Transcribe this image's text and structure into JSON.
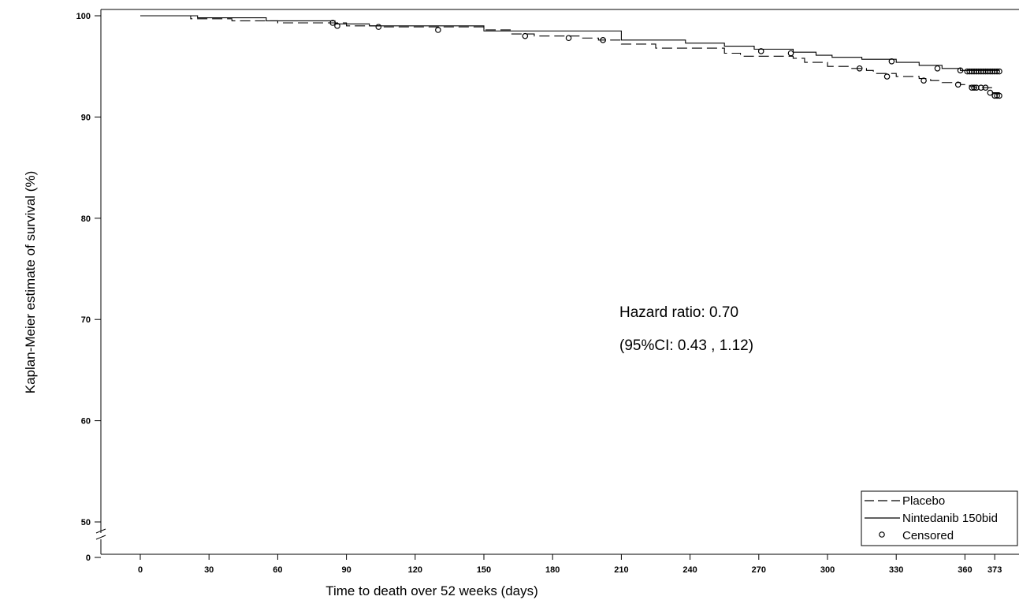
{
  "chart_data": {
    "type": "line",
    "subtype": "kaplan-meier step",
    "xlabel": "Time to death over 52 weeks (days)",
    "ylabel": "Kaplan-Meier estimate of survival (%)",
    "xticks": [
      "0",
      "30",
      "60",
      "90",
      "120",
      "150",
      "180",
      "210",
      "240",
      "270",
      "300",
      "330",
      "360",
      "373"
    ],
    "yticks": [
      "0",
      "50",
      "60",
      "70",
      "80",
      "90",
      "100"
    ],
    "xlim": [
      -17,
      388
    ],
    "ylim": [
      0,
      100
    ],
    "axis_break": "between 0 and 50 on y axis",
    "annotations": [
      "Hazard ratio: 0.70",
      "(95%CI: 0.43 , 1.12)"
    ],
    "legend": {
      "position": "bottom-right",
      "entries": [
        {
          "label": "Placebo",
          "style": "dashed"
        },
        {
          "label": "Nintedanib 150bid",
          "style": "solid"
        },
        {
          "label": "Censored",
          "style": "circle"
        }
      ]
    },
    "series": [
      {
        "name": "Placebo",
        "style": "dashed",
        "x": [
          0,
          22,
          40,
          60,
          90,
          105,
          150,
          162,
          172,
          192,
          200,
          210,
          225,
          255,
          262,
          285,
          290,
          300,
          310,
          317,
          320,
          330,
          340,
          345,
          350,
          358,
          362,
          364,
          372,
          375
        ],
        "y": [
          100,
          99.7,
          99.5,
          99.3,
          99.0,
          98.9,
          98.6,
          98.2,
          98.0,
          97.8,
          97.6,
          97.2,
          96.8,
          96.3,
          96.0,
          95.8,
          95.4,
          95.0,
          94.8,
          94.6,
          94.3,
          94.0,
          93.8,
          93.6,
          93.4,
          93.2,
          93.0,
          92.9,
          92.4,
          92.2
        ],
        "censored": [
          [
            86,
            99.0
          ],
          [
            314,
            94.8
          ],
          [
            326,
            94.0
          ],
          [
            342,
            93.6
          ],
          [
            357,
            93.2
          ],
          [
            363,
            92.9
          ],
          [
            364,
            92.9
          ],
          [
            365,
            92.9
          ],
          [
            367,
            92.9
          ],
          [
            369,
            92.9
          ],
          [
            371,
            92.4
          ],
          [
            373,
            92.1
          ],
          [
            374,
            92.1
          ],
          [
            375,
            92.1
          ]
        ]
      },
      {
        "name": "Nintedanib 150bid",
        "style": "solid",
        "x": [
          0,
          25,
          55,
          85,
          100,
          150,
          210,
          238,
          255,
          268,
          285,
          295,
          302,
          315,
          330,
          340,
          350,
          358
        ],
        "y": [
          100,
          99.8,
          99.5,
          99.2,
          99.0,
          98.5,
          97.6,
          97.3,
          97.0,
          96.7,
          96.4,
          96.1,
          95.9,
          95.7,
          95.4,
          95.1,
          94.8,
          94.6
        ],
        "censored": [
          [
            84,
            99.3
          ],
          [
            104,
            98.9
          ],
          [
            130,
            98.6
          ],
          [
            168,
            98.0
          ],
          [
            187,
            97.8
          ],
          [
            202,
            97.6
          ],
          [
            271,
            96.5
          ],
          [
            284,
            96.3
          ],
          [
            328,
            95.5
          ],
          [
            348,
            94.8
          ],
          [
            358,
            94.6
          ],
          [
            361,
            94.5
          ],
          [
            362,
            94.5
          ],
          [
            363,
            94.5
          ],
          [
            364,
            94.5
          ],
          [
            365,
            94.5
          ],
          [
            366,
            94.5
          ],
          [
            367,
            94.5
          ],
          [
            368,
            94.5
          ],
          [
            369,
            94.5
          ],
          [
            370,
            94.5
          ],
          [
            371,
            94.5
          ],
          [
            372,
            94.5
          ],
          [
            373,
            94.5
          ],
          [
            374,
            94.5
          ],
          [
            375,
            94.5
          ]
        ]
      }
    ]
  }
}
